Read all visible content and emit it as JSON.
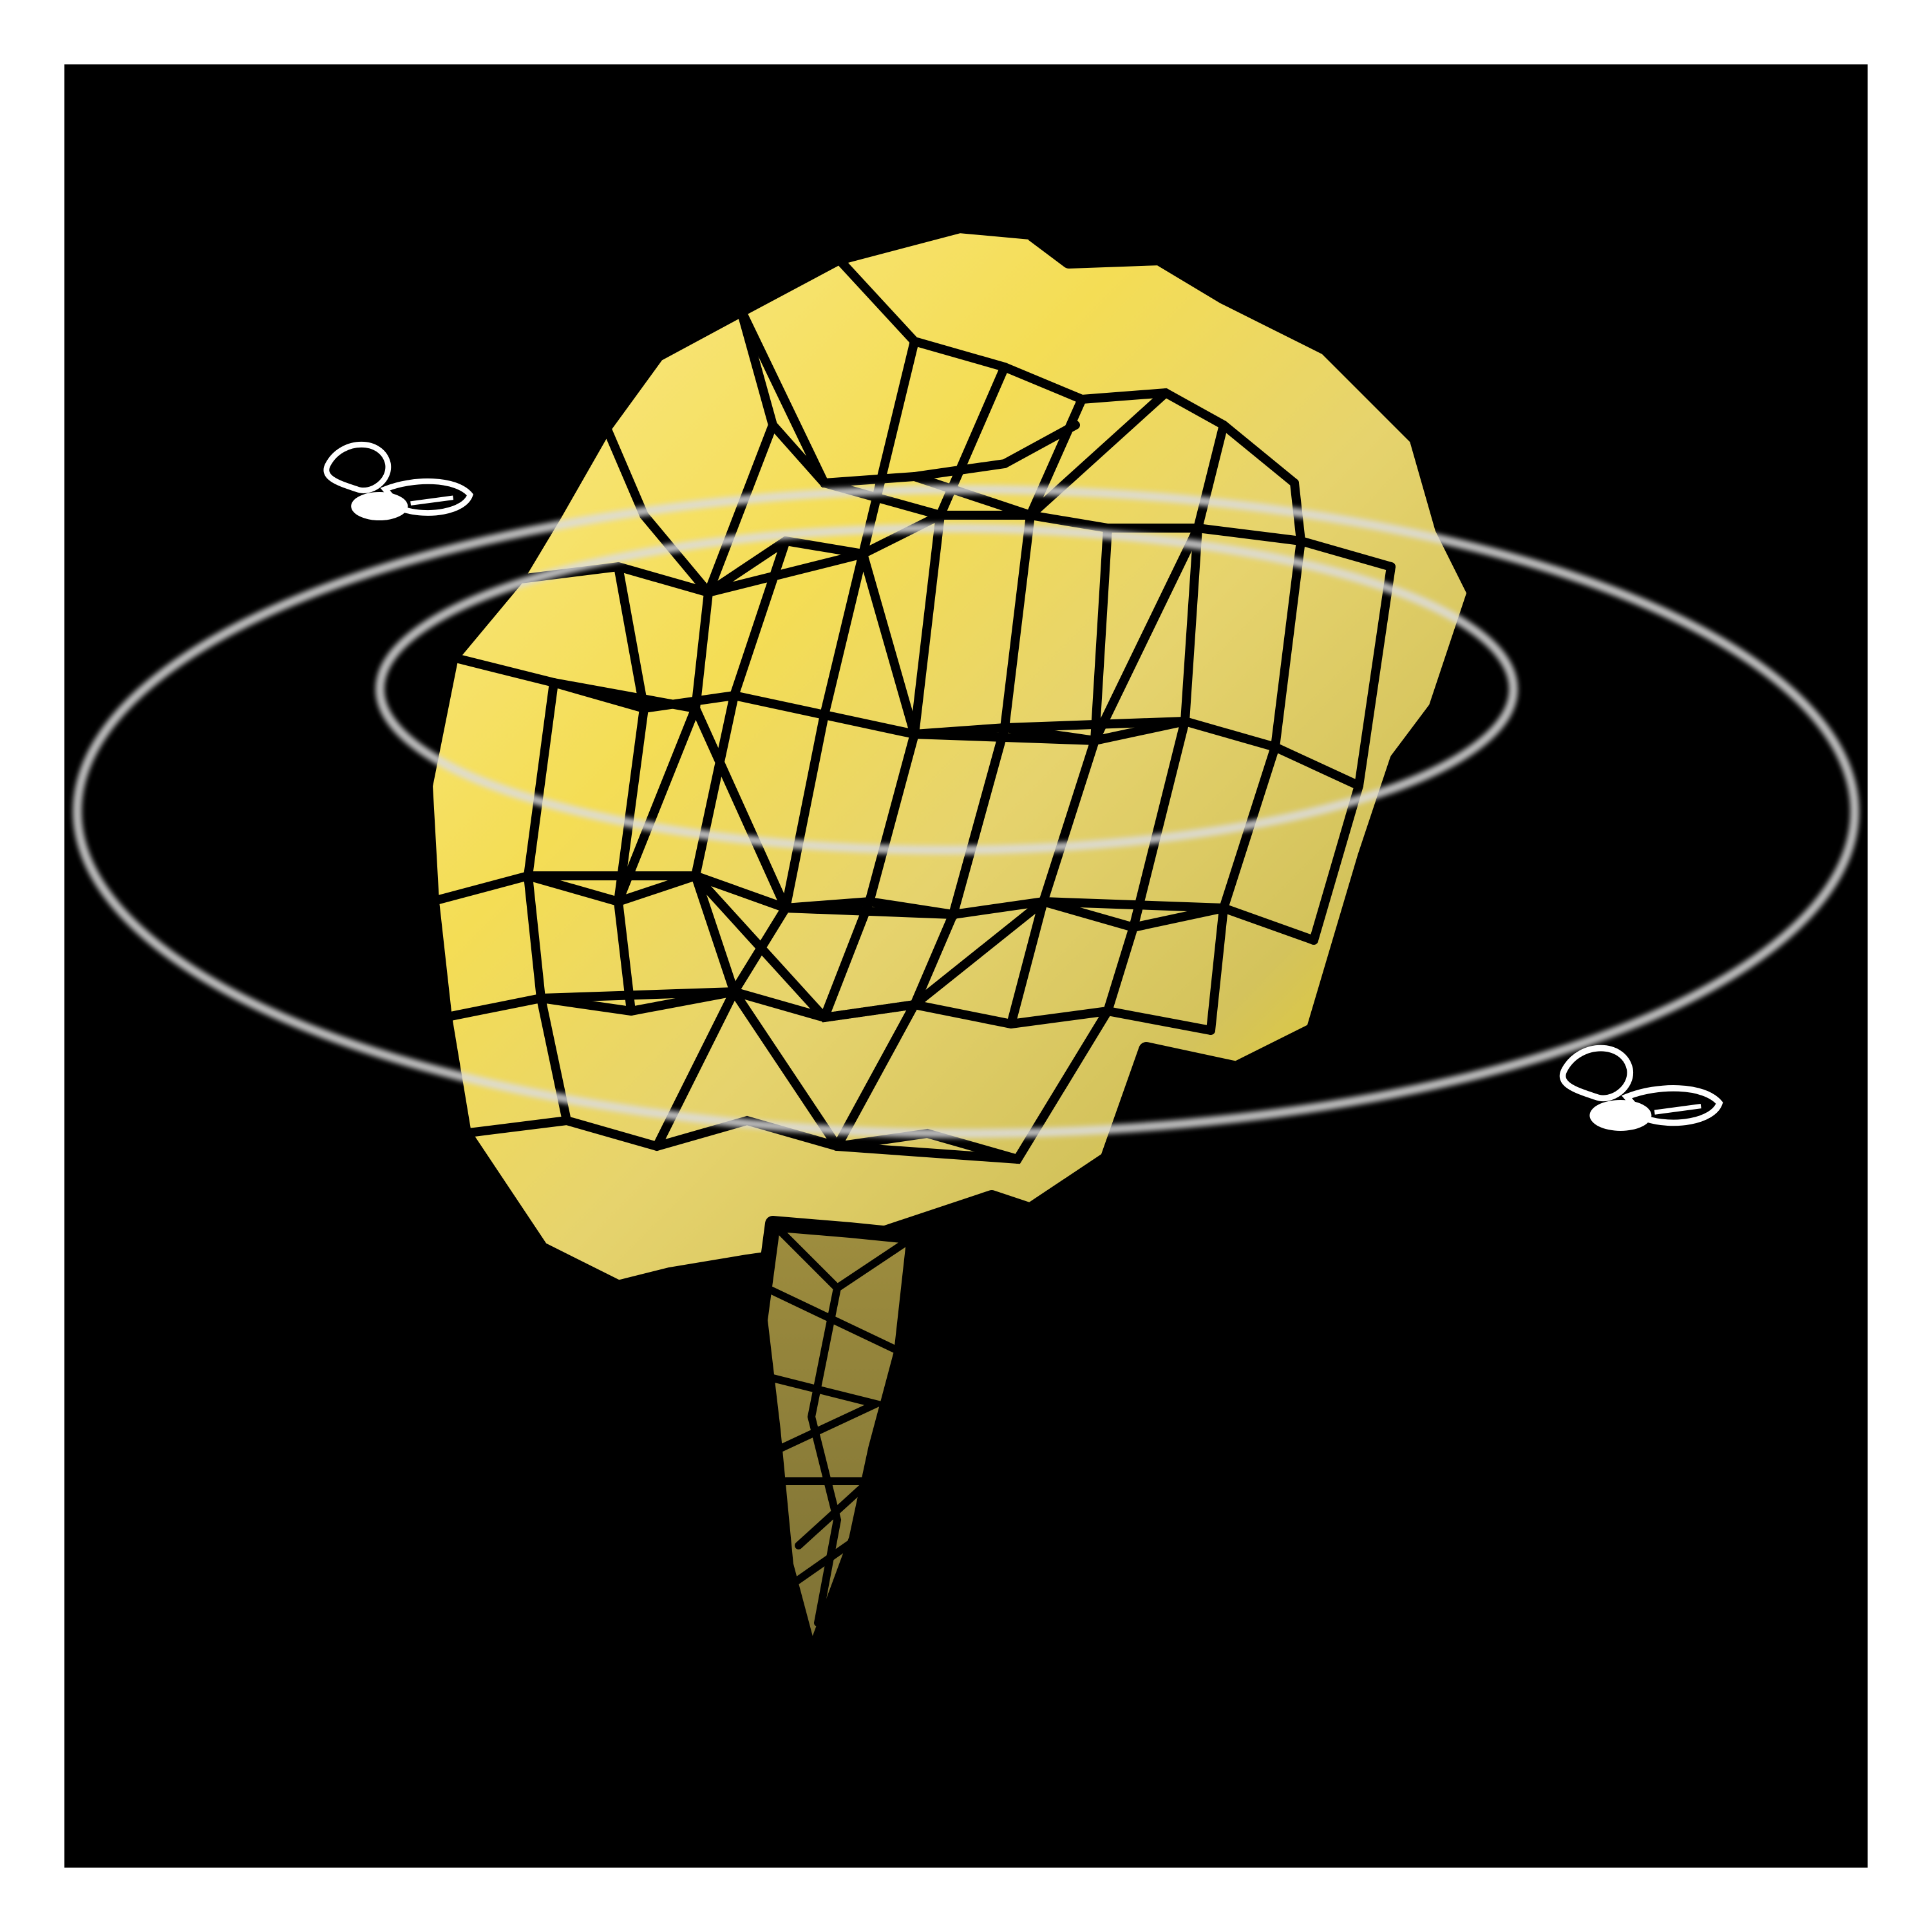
{
  "artwork": {
    "background_color": "#000000",
    "border_color": "#ffffff",
    "outline_color": "#000000",
    "gradient_colors": [
      "#FAE98C",
      "#F4DD55",
      "#E6D36D",
      "#D4C35C",
      "#9E8D3E",
      "#7C7034",
      "#F0D600"
    ],
    "orbit_color": "#dcdcdc",
    "subject": "tree-icon",
    "flying_insect_icons": [
      "bee-icon",
      "bee-icon"
    ]
  }
}
